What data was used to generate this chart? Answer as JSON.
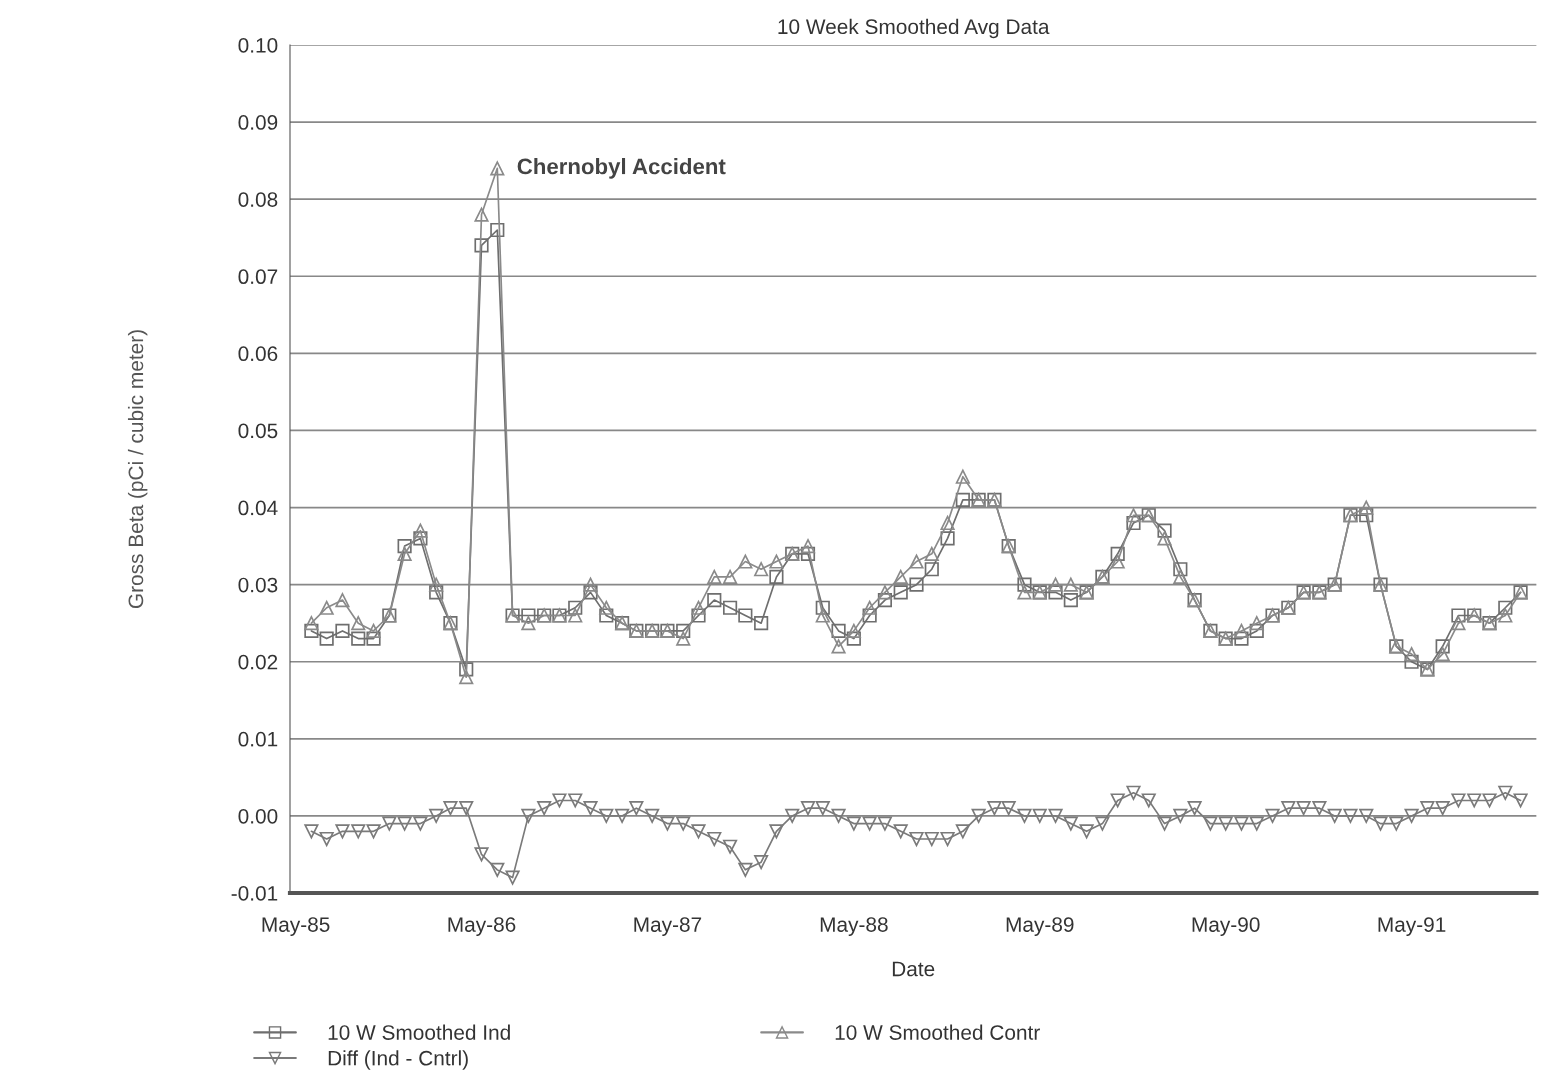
{
  "chart_data": {
    "type": "line",
    "title": "10 Week Smoothed Avg Data",
    "xlabel": "Date",
    "ylabel": "Gross Beta (pCi / cubic meter)",
    "x": [
      "1985-06",
      "1985-07",
      "1985-08",
      "1985-09",
      "1985-10",
      "1985-11",
      "1985-12",
      "1986-01",
      "1986-02",
      "1986-03",
      "1986-04",
      "1986-05",
      "1986-06",
      "1986-07",
      "1986-08",
      "1986-09",
      "1986-10",
      "1986-11",
      "1986-12",
      "1987-01",
      "1987-02",
      "1987-03",
      "1987-04",
      "1987-05",
      "1987-06",
      "1987-07",
      "1987-08",
      "1987-09",
      "1987-10",
      "1987-11",
      "1987-12",
      "1988-01",
      "1988-02",
      "1988-03",
      "1988-04",
      "1988-05",
      "1988-06",
      "1988-07",
      "1988-08",
      "1988-09",
      "1988-10",
      "1988-11",
      "1988-12",
      "1989-01",
      "1989-02",
      "1989-03",
      "1989-04",
      "1989-05",
      "1989-06",
      "1989-07",
      "1989-08",
      "1989-09",
      "1989-10",
      "1989-11",
      "1989-12",
      "1990-01",
      "1990-02",
      "1990-03",
      "1990-04",
      "1990-05",
      "1990-06",
      "1990-07",
      "1990-08",
      "1990-09",
      "1990-10",
      "1990-11",
      "1990-12",
      "1991-01",
      "1991-02",
      "1991-03",
      "1991-04",
      "1991-05",
      "1991-06",
      "1991-07",
      "1991-08",
      "1991-09",
      "1991-10",
      "1991-11",
      "1991-12"
    ],
    "series": [
      {
        "name": "10 W Smoothed Ind",
        "color": "#6e6e6e",
        "marker": "square",
        "values": [
          0.024,
          0.023,
          0.024,
          0.023,
          0.023,
          0.026,
          0.035,
          0.036,
          0.029,
          0.025,
          0.019,
          0.074,
          0.076,
          0.026,
          0.026,
          0.026,
          0.026,
          0.027,
          0.029,
          0.026,
          0.025,
          0.024,
          0.024,
          0.024,
          0.024,
          0.026,
          0.028,
          0.027,
          0.026,
          0.025,
          0.031,
          0.034,
          0.034,
          0.027,
          0.024,
          0.023,
          0.026,
          0.028,
          0.029,
          0.03,
          0.032,
          0.036,
          0.041,
          0.041,
          0.041,
          0.035,
          0.03,
          0.029,
          0.029,
          0.028,
          0.029,
          0.031,
          0.034,
          0.038,
          0.039,
          0.037,
          0.032,
          0.028,
          0.024,
          0.023,
          0.023,
          0.024,
          0.026,
          0.027,
          0.029,
          0.029,
          0.03,
          0.039,
          0.039,
          0.03,
          0.022,
          0.02,
          0.019,
          0.022,
          0.026,
          0.026,
          0.025,
          0.027,
          0.029
        ]
      },
      {
        "name": "10 W Smoothed Contr",
        "color": "#8a8a8a",
        "marker": "triangle",
        "values": [
          0.025,
          0.027,
          0.028,
          0.025,
          0.024,
          0.026,
          0.034,
          0.037,
          0.03,
          0.025,
          0.018,
          0.078,
          0.084,
          0.026,
          0.025,
          0.026,
          0.026,
          0.026,
          0.03,
          0.027,
          0.025,
          0.024,
          0.024,
          0.024,
          0.023,
          0.027,
          0.031,
          0.031,
          0.033,
          0.032,
          0.033,
          0.034,
          0.035,
          0.026,
          0.022,
          0.024,
          0.027,
          0.029,
          0.031,
          0.033,
          0.034,
          0.038,
          0.044,
          0.041,
          0.041,
          0.035,
          0.029,
          0.029,
          0.03,
          0.03,
          0.029,
          0.031,
          0.033,
          0.039,
          0.039,
          0.036,
          0.031,
          0.028,
          0.024,
          0.023,
          0.024,
          0.025,
          0.026,
          0.027,
          0.029,
          0.029,
          0.03,
          0.039,
          0.04,
          0.03,
          0.022,
          0.021,
          0.019,
          0.021,
          0.025,
          0.026,
          0.025,
          0.026,
          0.029
        ]
      },
      {
        "name": "Diff (Ind - Cntrl)",
        "color": "#7a7a7a",
        "marker": "triangle_down",
        "values": [
          -0.002,
          -0.003,
          -0.002,
          -0.002,
          -0.002,
          -0.001,
          -0.001,
          -0.001,
          0.0,
          0.001,
          0.001,
          -0.005,
          -0.007,
          -0.008,
          0.0,
          0.001,
          0.002,
          0.002,
          0.001,
          0.0,
          0.0,
          0.001,
          0.0,
          -0.001,
          -0.001,
          -0.002,
          -0.003,
          -0.004,
          -0.007,
          -0.006,
          -0.002,
          0.0,
          0.001,
          0.001,
          0.0,
          -0.001,
          -0.001,
          -0.001,
          -0.002,
          -0.003,
          -0.003,
          -0.003,
          -0.002,
          0.0,
          0.001,
          0.001,
          0.0,
          0.0,
          0.0,
          -0.001,
          -0.002,
          -0.001,
          0.002,
          0.003,
          0.002,
          -0.001,
          0.0,
          0.001,
          -0.001,
          -0.001,
          -0.001,
          -0.001,
          0.0,
          0.001,
          0.001,
          0.001,
          0.0,
          0.0,
          0.0,
          -0.001,
          -0.001,
          0.0,
          0.001,
          0.001,
          0.002,
          0.002,
          0.002,
          0.003,
          0.002
        ]
      }
    ],
    "xlim": [
      "1985-04-20",
      "1992-01-01"
    ],
    "xticks": [
      {
        "value": "1985-05",
        "label": "May-85"
      },
      {
        "value": "1986-05",
        "label": "May-86"
      },
      {
        "value": "1987-05",
        "label": "May-87"
      },
      {
        "value": "1988-05",
        "label": "May-88"
      },
      {
        "value": "1989-05",
        "label": "May-89"
      },
      {
        "value": "1990-05",
        "label": "May-90"
      },
      {
        "value": "1991-05",
        "label": "May-91"
      }
    ],
    "ylim": [
      -0.01,
      0.1
    ],
    "yticks": [
      {
        "value": -0.01,
        "label": "-0.01"
      },
      {
        "value": 0.0,
        "label": "0.00"
      },
      {
        "value": 0.01,
        "label": "0.01"
      },
      {
        "value": 0.02,
        "label": "0.02"
      },
      {
        "value": 0.03,
        "label": "0.03"
      },
      {
        "value": 0.04,
        "label": "0.04"
      },
      {
        "value": 0.05,
        "label": "0.05"
      },
      {
        "value": 0.06,
        "label": "0.06"
      },
      {
        "value": 0.07,
        "label": "0.07"
      },
      {
        "value": 0.08,
        "label": "0.08"
      },
      {
        "value": 0.09,
        "label": "0.09"
      },
      {
        "value": 0.1,
        "label": "0.10"
      }
    ],
    "grid": "y",
    "legend": "bottom",
    "annotations": [
      {
        "text": "Chernobyl Accident",
        "x": "1986-06",
        "y": 0.084
      }
    ]
  }
}
